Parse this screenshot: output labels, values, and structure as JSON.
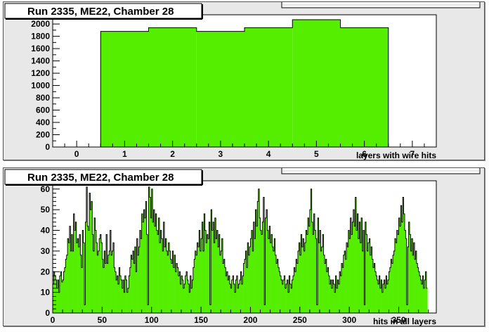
{
  "colors": {
    "fill": "#55ee00",
    "line": "#000000",
    "frame_bg": "#ffffff",
    "pad_bg": "#e8e8e8"
  },
  "chart_data": [
    {
      "type": "bar",
      "title": "Run 2335, ME22, Chamber 28",
      "xlabel": "layers with wire hits",
      "ylabel": "",
      "xlim": [
        -0.5,
        7.5
      ],
      "ylim": [
        0,
        2150
      ],
      "xticks": [
        0,
        1,
        2,
        3,
        4,
        5,
        6,
        7
      ],
      "yticks": [
        0,
        200,
        400,
        600,
        800,
        1000,
        1200,
        1400,
        1600,
        1800,
        2000
      ],
      "bins": [
        {
          "x0": 0.5,
          "x1": 1.5,
          "y": 1880
        },
        {
          "x0": 1.5,
          "x1": 2.5,
          "y": 1940
        },
        {
          "x0": 2.5,
          "x1": 3.5,
          "y": 1880
        },
        {
          "x0": 3.5,
          "x1": 4.5,
          "y": 1940
        },
        {
          "x0": 4.5,
          "x1": 5.5,
          "y": 2070
        },
        {
          "x0": 5.5,
          "x1": 6.5,
          "y": 1940
        }
      ],
      "grid": false,
      "stats_box": "top-right"
    },
    {
      "type": "bar",
      "title": "Run 2335, ME22, Chamber 28",
      "xlabel": "hits in all layers",
      "ylabel": "",
      "xlim": [
        0,
        388
      ],
      "ylim": [
        0,
        64
      ],
      "xticks": [
        0,
        50,
        100,
        150,
        200,
        250,
        300,
        350
      ],
      "yticks": [
        0,
        10,
        20,
        30,
        40,
        50,
        60
      ],
      "bin_width": 1,
      "values": [
        14,
        20,
        18,
        16,
        12,
        16,
        10,
        18,
        20,
        15,
        16,
        20,
        22,
        26,
        28,
        36,
        34,
        42,
        30,
        38,
        30,
        48,
        40,
        44,
        34,
        36,
        32,
        38,
        28,
        22,
        40,
        34,
        4,
        44,
        61,
        42,
        40,
        58,
        50,
        54,
        38,
        30,
        46,
        40,
        34,
        28,
        30,
        36,
        38,
        34,
        26,
        22,
        30,
        24,
        38,
        24,
        28,
        30,
        40,
        28,
        30,
        34,
        22,
        20,
        16,
        18,
        14,
        22,
        18,
        16,
        12,
        16,
        10,
        18,
        16,
        10,
        12,
        18,
        22,
        28,
        26,
        30,
        24,
        32,
        20,
        36,
        28,
        32,
        40,
        36,
        48,
        44,
        50,
        46,
        54,
        38,
        4,
        61,
        56,
        46,
        60,
        44,
        50,
        42,
        48,
        40,
        38,
        46,
        34,
        40,
        36,
        30,
        44,
        32,
        36,
        30,
        28,
        34,
        30,
        26,
        24,
        30,
        22,
        28,
        20,
        24,
        22,
        18,
        20,
        14,
        18,
        16,
        12,
        14,
        18,
        20,
        16,
        14,
        10,
        18,
        12,
        16,
        22,
        26,
        30,
        28,
        34,
        32,
        40,
        30,
        36,
        44,
        30,
        48,
        40,
        34,
        38,
        36,
        44,
        4,
        50,
        40,
        44,
        34,
        46,
        36,
        40,
        32,
        38,
        28,
        30,
        36,
        24,
        26,
        22,
        18,
        20,
        16,
        18,
        14,
        12,
        16,
        18,
        14,
        10,
        16,
        18,
        12,
        14,
        16,
        20,
        14,
        18,
        24,
        26,
        30,
        22,
        34,
        28,
        32,
        36,
        40,
        30,
        44,
        36,
        50,
        42,
        54,
        60,
        46,
        40,
        38,
        44,
        56,
        4,
        46,
        50,
        40,
        36,
        42,
        34,
        38,
        32,
        30,
        36,
        28,
        24,
        26,
        22,
        20,
        18,
        16,
        14,
        16,
        18,
        12,
        14,
        16,
        10,
        18,
        14,
        12,
        16,
        18,
        22,
        20,
        26,
        24,
        30,
        34,
        28,
        38,
        32,
        36,
        30,
        34,
        40,
        38,
        46,
        42,
        50,
        60,
        44,
        38,
        48,
        40,
        36,
        4,
        46,
        34,
        40,
        30,
        32,
        38,
        28,
        24,
        26,
        20,
        22,
        18,
        14,
        16,
        12,
        16,
        14,
        10,
        18,
        12,
        16,
        14,
        20,
        18,
        24,
        22,
        28,
        30,
        26,
        34,
        32,
        40,
        36,
        46,
        38,
        44,
        50,
        42,
        56,
        40,
        48,
        36,
        44,
        34,
        46,
        30,
        40,
        4,
        44,
        38,
        30,
        34,
        36,
        28,
        32,
        26,
        22,
        24,
        20,
        18,
        16,
        14,
        18,
        12,
        16,
        10,
        14,
        16,
        12,
        18,
        14,
        16,
        20,
        22,
        26,
        24,
        28,
        30,
        36,
        34,
        40,
        38,
        46,
        42,
        52,
        44,
        56,
        48,
        40,
        36,
        4,
        32,
        44,
        38,
        30,
        36,
        28,
        34,
        26,
        30,
        24,
        22,
        20,
        18,
        16,
        14,
        18,
        12,
        16,
        20,
        12
      ]
    }
  ]
}
